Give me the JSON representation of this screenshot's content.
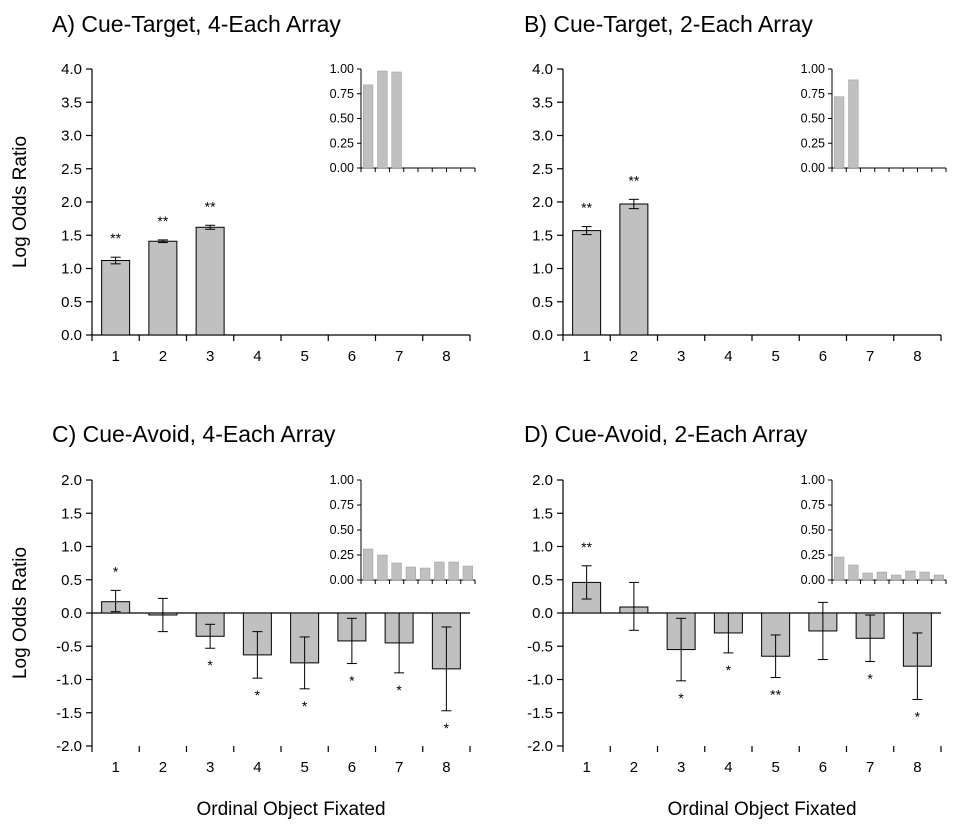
{
  "figure": {
    "xlabel": "Ordinal Object Fixated",
    "ylabel": "Log Odds Ratio"
  },
  "chart_data": [
    {
      "type": "bar",
      "panel": "A",
      "title": "A) Cue-Target, 4-Each Array",
      "xlabel": "",
      "ylabel": "Log Odds Ratio",
      "categories": [
        "1",
        "2",
        "3",
        "4",
        "5",
        "6",
        "7",
        "8"
      ],
      "values": [
        1.12,
        1.41,
        1.62,
        null,
        null,
        null,
        null,
        null
      ],
      "error_low": [
        0.05,
        0.02,
        0.03,
        null,
        null,
        null,
        null,
        null
      ],
      "error_high": [
        0.05,
        0.02,
        0.03,
        null,
        null,
        null,
        null,
        null
      ],
      "significance": [
        "**",
        "**",
        "**",
        "",
        "",
        "",
        "",
        ""
      ],
      "ylim": [
        0,
        4
      ],
      "yticks": [
        "0.0",
        "0.5",
        "1.0",
        "1.5",
        "2.0",
        "2.5",
        "3.0",
        "3.5",
        "4.0"
      ],
      "inset": {
        "type": "bar",
        "values": [
          0.84,
          0.98,
          0.97,
          0,
          0,
          0,
          0,
          0
        ],
        "ylim": [
          0,
          1
        ],
        "yticks": [
          "0.00",
          "0.25",
          "0.50",
          "0.75",
          "1.00"
        ]
      }
    },
    {
      "type": "bar",
      "panel": "B",
      "title": "B) Cue-Target, 2-Each Array",
      "xlabel": "",
      "ylabel": "",
      "categories": [
        "1",
        "2",
        "3",
        "4",
        "5",
        "6",
        "7",
        "8"
      ],
      "values": [
        1.57,
        1.97,
        null,
        null,
        null,
        null,
        null,
        null
      ],
      "error_low": [
        0.06,
        0.07,
        null,
        null,
        null,
        null,
        null,
        null
      ],
      "error_high": [
        0.06,
        0.07,
        null,
        null,
        null,
        null,
        null,
        null
      ],
      "significance": [
        "**",
        "**",
        "",
        "",
        "",
        "",
        "",
        ""
      ],
      "ylim": [
        0,
        4
      ],
      "yticks": [
        "0.0",
        "0.5",
        "1.0",
        "1.5",
        "2.0",
        "2.5",
        "3.0",
        "3.5",
        "4.0"
      ],
      "inset": {
        "type": "bar",
        "values": [
          0.72,
          0.89,
          0,
          0,
          0,
          0,
          0,
          0
        ],
        "ylim": [
          0,
          1
        ],
        "yticks": [
          "0.00",
          "0.25",
          "0.50",
          "0.75",
          "1.00"
        ]
      }
    },
    {
      "type": "bar",
      "panel": "C",
      "title": "C) Cue-Avoid, 4-Each Array",
      "xlabel": "Ordinal Object Fixated",
      "ylabel": "Log Odds Ratio",
      "categories": [
        "1",
        "2",
        "3",
        "4",
        "5",
        "6",
        "7",
        "8"
      ],
      "values": [
        0.17,
        -0.03,
        -0.35,
        -0.63,
        -0.75,
        -0.42,
        -0.45,
        -0.84
      ],
      "error_low": [
        0.15,
        0.25,
        0.18,
        0.35,
        0.39,
        0.34,
        0.45,
        0.63
      ],
      "error_high": [
        0.17,
        0.25,
        0.18,
        0.35,
        0.39,
        0.34,
        0.45,
        0.63
      ],
      "significance": [
        "*",
        "",
        "*",
        "*",
        "*",
        "*",
        "*",
        "*"
      ],
      "ylim": [
        -2,
        2
      ],
      "yticks": [
        "-2.0",
        "-1.5",
        "-1.0",
        "-0.5",
        "0.0",
        "0.5",
        "1.0",
        "1.5",
        "2.0"
      ],
      "inset": {
        "type": "bar",
        "values": [
          0.31,
          0.25,
          0.17,
          0.13,
          0.12,
          0.18,
          0.18,
          0.14
        ],
        "ylim": [
          0,
          1
        ],
        "yticks": [
          "0.00",
          "0.25",
          "0.50",
          "0.75",
          "1.00"
        ]
      }
    },
    {
      "type": "bar",
      "panel": "D",
      "title": "D) Cue-Avoid, 2-Each Array",
      "xlabel": "Ordinal Object Fixated",
      "ylabel": "",
      "categories": [
        "1",
        "2",
        "3",
        "4",
        "5",
        "6",
        "7",
        "8"
      ],
      "values": [
        0.46,
        0.09,
        -0.55,
        -0.3,
        -0.65,
        -0.27,
        -0.38,
        -0.8
      ],
      "error_low": [
        0.25,
        0.35,
        0.47,
        0.3,
        0.32,
        0.43,
        0.35,
        0.5
      ],
      "error_high": [
        0.25,
        0.37,
        0.47,
        0.3,
        0.32,
        0.43,
        0.35,
        0.5
      ],
      "significance": [
        "**",
        "",
        "*",
        "*",
        "**",
        "",
        "*",
        "*"
      ],
      "ylim": [
        -2,
        2
      ],
      "yticks": [
        "-2.0",
        "-1.5",
        "-1.0",
        "-0.5",
        "0.0",
        "0.5",
        "1.0",
        "1.5",
        "2.0"
      ],
      "inset": {
        "type": "bar",
        "values": [
          0.23,
          0.15,
          0.07,
          0.08,
          0.05,
          0.09,
          0.08,
          0.05
        ],
        "ylim": [
          0,
          1
        ],
        "yticks": [
          "0.00",
          "0.25",
          "0.50",
          "0.75",
          "1.00"
        ]
      }
    }
  ],
  "colors": {
    "bar_fill": "#c0c0c0",
    "bar_stroke": "#000000",
    "inset_bar_fill": "#c0c0c0",
    "axis": "#000000",
    "background": "#ffffff"
  }
}
